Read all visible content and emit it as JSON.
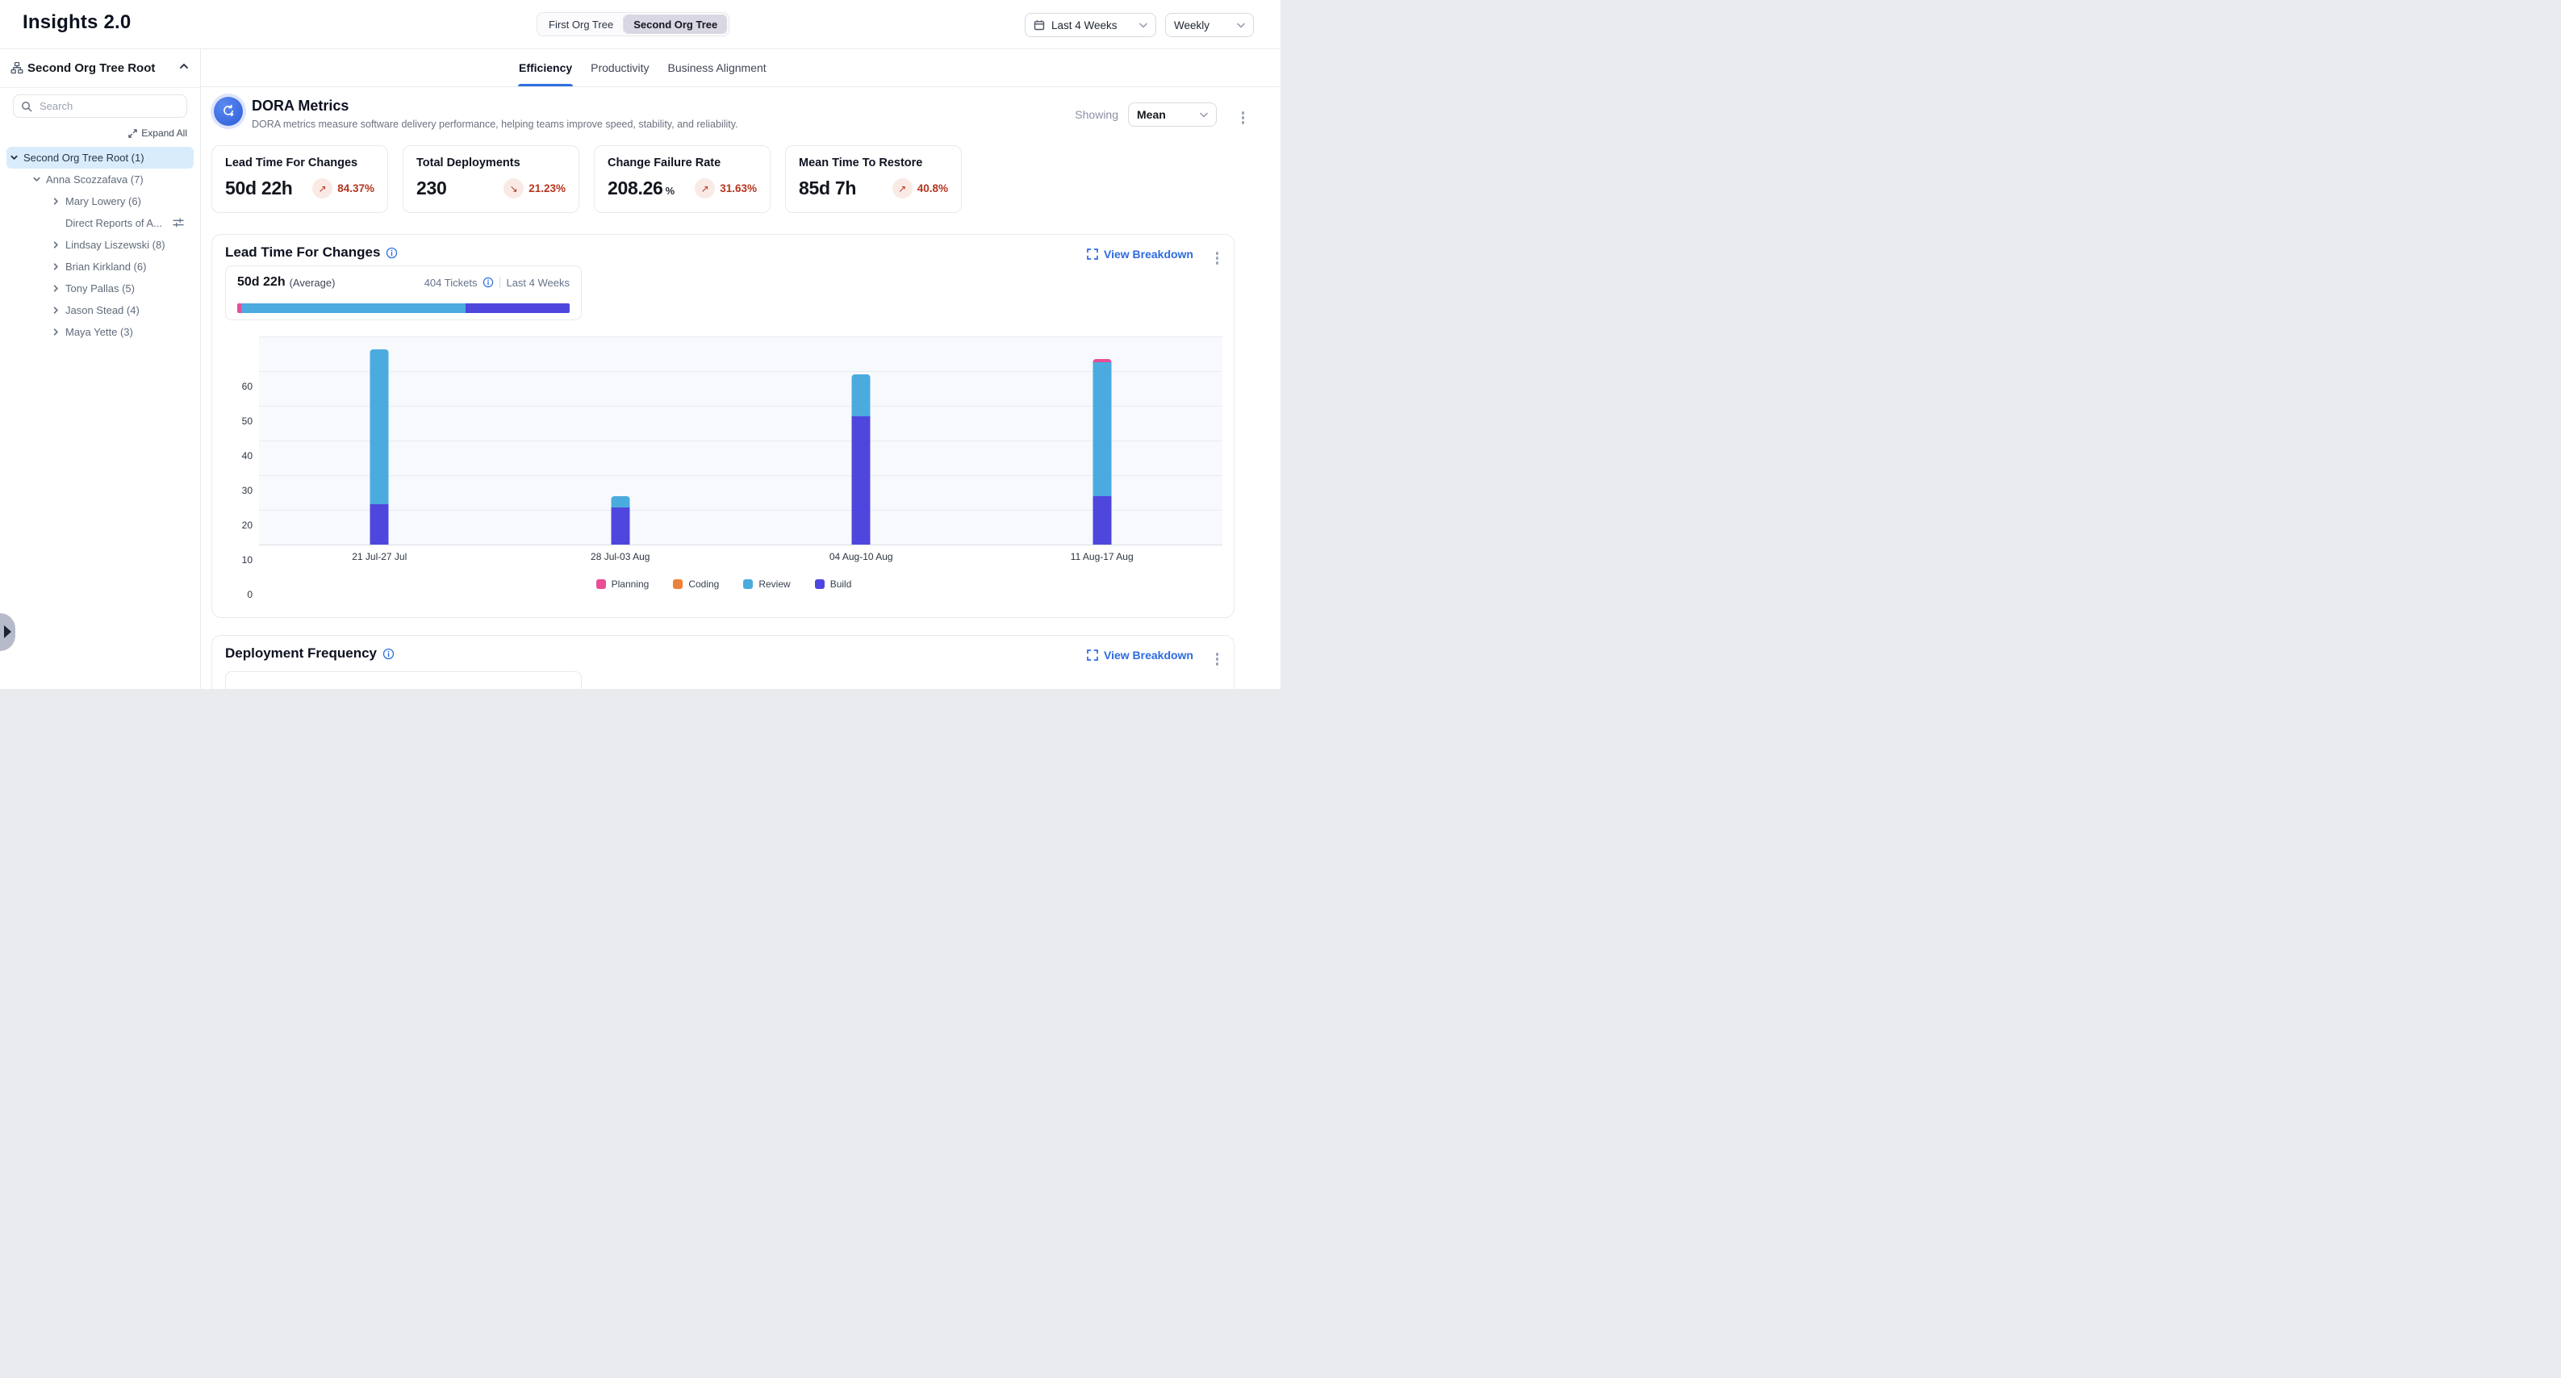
{
  "app": {
    "title": "Insights 2.0"
  },
  "header": {
    "org_tree_toggle": {
      "options": [
        "First Org Tree",
        "Second Org Tree"
      ],
      "active": "Second Org Tree"
    },
    "date_range": "Last 4 Weeks",
    "granularity": "Weekly"
  },
  "sidebar": {
    "root_label": "Second Org Tree Root",
    "search_placeholder": "Search",
    "expand_all_label": "Expand All",
    "tree": [
      {
        "label": "Second Org Tree Root",
        "count": "(1)",
        "level": 0,
        "chevron": "down",
        "selected": true
      },
      {
        "label": "Anna Scozzafava",
        "count": "(7)",
        "level": 1,
        "chevron": "down",
        "selected": false
      },
      {
        "label": "Mary Lowery",
        "count": "(6)",
        "level": 2,
        "chevron": "right",
        "selected": false
      },
      {
        "label": "Direct Reports of A...",
        "count": "",
        "level": 2,
        "chevron": "none",
        "selected": false,
        "trailing_icon": "sliders"
      },
      {
        "label": "Lindsay Liszewski",
        "count": "(8)",
        "level": 2,
        "chevron": "right",
        "selected": false
      },
      {
        "label": "Brian Kirkland",
        "count": "(6)",
        "level": 2,
        "chevron": "right",
        "selected": false
      },
      {
        "label": "Tony Pallas",
        "count": "(5)",
        "level": 2,
        "chevron": "right",
        "selected": false
      },
      {
        "label": "Jason Stead",
        "count": "(4)",
        "level": 2,
        "chevron": "right",
        "selected": false
      },
      {
        "label": "Maya Yette",
        "count": "(3)",
        "level": 2,
        "chevron": "right",
        "selected": false
      }
    ]
  },
  "tabs": [
    {
      "label": "Efficiency",
      "active": true
    },
    {
      "label": "Productivity",
      "active": false
    },
    {
      "label": "Business Alignment",
      "active": false
    }
  ],
  "dora": {
    "title": "DORA Metrics",
    "subtitle": "DORA metrics measure software delivery performance, helping teams improve speed, stability, and reliability.",
    "showing_label": "Showing",
    "showing_value": "Mean",
    "cards": [
      {
        "title": "Lead Time For Changes",
        "value": "50d 22h",
        "unit": "",
        "trend": "84.37%",
        "direction": "up"
      },
      {
        "title": "Total Deployments",
        "value": "230",
        "unit": "",
        "trend": "21.23%",
        "direction": "down"
      },
      {
        "title": "Change Failure Rate",
        "value": "208.26",
        "unit": "%",
        "trend": "31.63%",
        "direction": "up"
      },
      {
        "title": "Mean Time To Restore",
        "value": "85d 7h",
        "unit": "",
        "trend": "40.8%",
        "direction": "up"
      }
    ]
  },
  "lead_time_section": {
    "title": "Lead Time For Changes",
    "view_breakdown_label": "View Breakdown",
    "summary": {
      "value": "50d 22h",
      "qualifier": "(Average)",
      "tickets": "404 Tickets",
      "period": "Last 4 Weeks",
      "bar_segments": [
        {
          "name": "Planning",
          "pct": 1.3
        },
        {
          "name": "Coding",
          "pct": 0
        },
        {
          "name": "Review",
          "pct": 67.4
        },
        {
          "name": "Build",
          "pct": 31.3
        }
      ]
    }
  },
  "chart_data": {
    "type": "bar",
    "stacked": true,
    "title": "Lead Time For Changes",
    "categories": [
      "21 Jul-27 Jul",
      "28 Jul-03 Aug",
      "04 Aug-10 Aug",
      "11 Aug-17 Aug"
    ],
    "series": [
      {
        "name": "Planning",
        "color": "#e84d96",
        "values": [
          0,
          0,
          0,
          0.9
        ]
      },
      {
        "name": "Coding",
        "color": "#ef8038",
        "values": [
          0,
          0,
          0,
          0
        ]
      },
      {
        "name": "Review",
        "color": "#4babdf",
        "values": [
          44.5,
          3.3,
          12,
          38.5
        ]
      },
      {
        "name": "Build",
        "color": "#4f46dd",
        "values": [
          11.7,
          10.7,
          37,
          14
        ]
      }
    ],
    "stack_order_bottom_to_top": [
      "Build",
      "Review",
      "Coding",
      "Planning"
    ],
    "xlabel": "",
    "ylabel": "",
    "ylim": [
      0,
      60
    ],
    "yticks": [
      0,
      10,
      20,
      30,
      40,
      50,
      60
    ],
    "grid": true,
    "legend": [
      "Planning",
      "Coding",
      "Review",
      "Build"
    ],
    "legend_position": "bottom"
  },
  "deployment_section": {
    "title": "Deployment Frequency",
    "view_breakdown_label": "View Breakdown"
  }
}
